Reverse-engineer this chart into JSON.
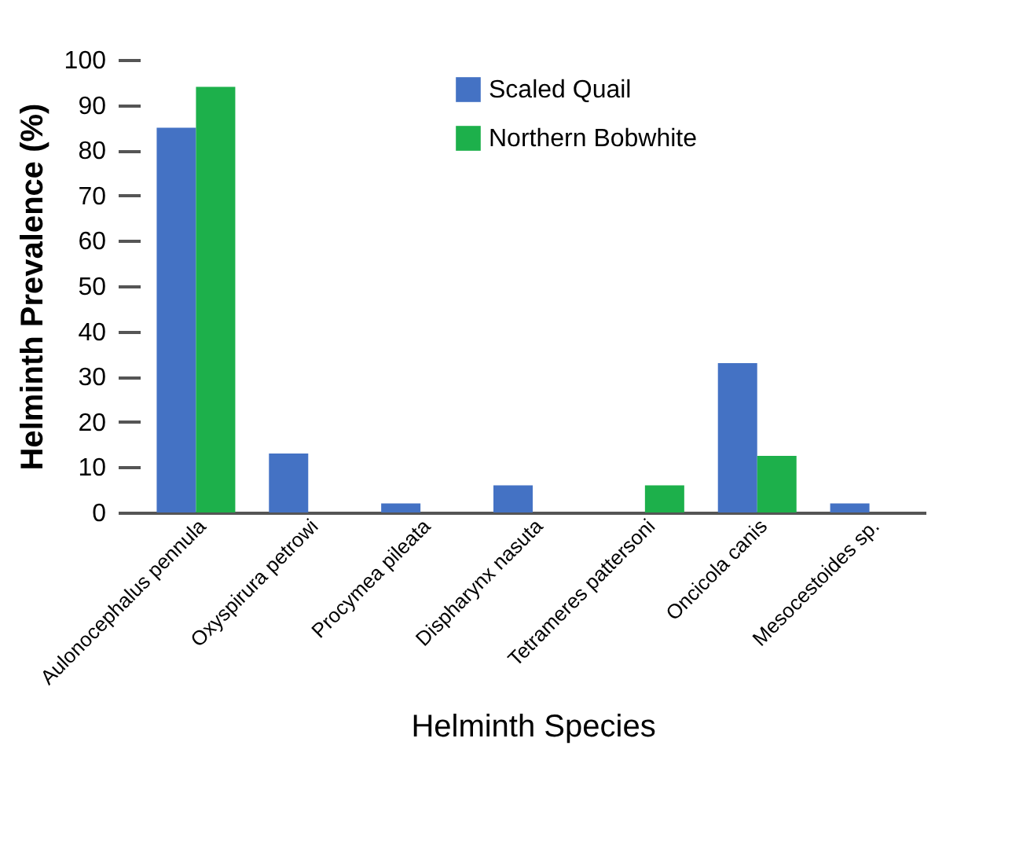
{
  "chart_data": {
    "type": "bar",
    "xlabel": "Helminth Species",
    "ylabel": "Helminth Prevalence (%)",
    "categories": [
      "Aulonocephalus pennula",
      "Oxyspirura petrowi",
      "Procymea pileata",
      "Dispharynx nasuta",
      "Tetrameres pattersoni",
      "Oncicola canis",
      "Mesocestoides sp."
    ],
    "series": [
      {
        "name": "Scaled Quail",
        "color": "#4472c4",
        "values": [
          85,
          13,
          2,
          6,
          null,
          33,
          2
        ]
      },
      {
        "name": "Northern Bobwhite",
        "color": "#1db04b",
        "values": [
          94,
          null,
          null,
          null,
          6,
          12.5,
          null
        ]
      }
    ],
    "ylim": [
      0,
      100
    ],
    "yticks": [
      0,
      10,
      20,
      30,
      40,
      50,
      60,
      70,
      80,
      90,
      100
    ],
    "grid": false,
    "legend": "top"
  }
}
